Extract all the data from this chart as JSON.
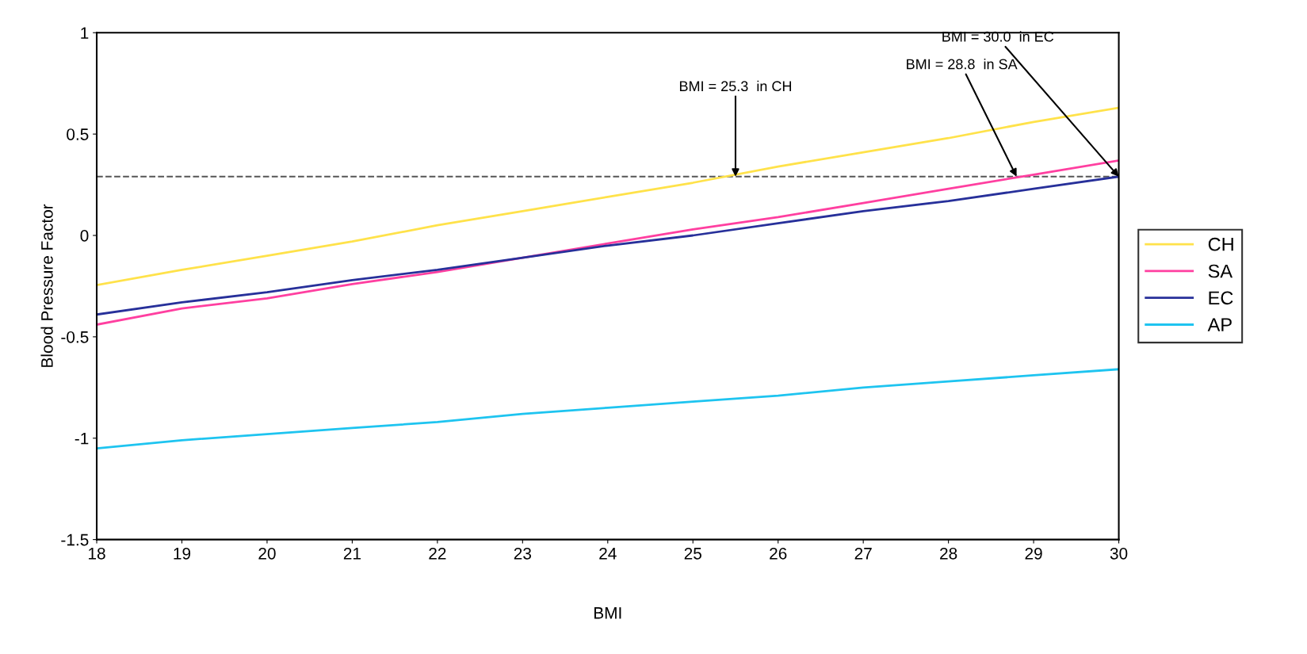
{
  "chart_data": {
    "type": "line",
    "xlabel": "BMI",
    "ylabel": "Blood Pressure Factor",
    "x": [
      18,
      19,
      20,
      21,
      22,
      23,
      24,
      25,
      26,
      27,
      28,
      29,
      30
    ],
    "series": [
      {
        "name": "CH",
        "color": "#ffe24a",
        "values": [
          -0.245,
          -0.17,
          -0.1,
          -0.03,
          0.05,
          0.12,
          0.19,
          0.26,
          0.34,
          0.41,
          0.48,
          0.56,
          0.63
        ]
      },
      {
        "name": "SA",
        "color": "#ff3fa0",
        "values": [
          -0.44,
          -0.36,
          -0.31,
          -0.24,
          -0.18,
          -0.11,
          -0.04,
          0.03,
          0.09,
          0.16,
          0.23,
          0.3,
          0.37
        ]
      },
      {
        "name": "EC",
        "color": "#27309a",
        "values": [
          -0.39,
          -0.33,
          -0.28,
          -0.22,
          -0.17,
          -0.11,
          -0.05,
          0.0,
          0.06,
          0.12,
          0.17,
          0.23,
          0.29
        ]
      },
      {
        "name": "AP",
        "color": "#1ec4f0",
        "values": [
          -1.05,
          -1.01,
          -0.98,
          -0.95,
          -0.92,
          -0.88,
          -0.85,
          -0.82,
          -0.79,
          -0.75,
          -0.72,
          -0.69,
          -0.66
        ]
      }
    ],
    "xlim": [
      18,
      30
    ],
    "xticks": [
      18,
      19,
      20,
      21,
      22,
      23,
      24,
      25,
      26,
      27,
      28,
      29,
      30
    ],
    "ylim": [
      -1.5,
      1
    ],
    "yticks": [
      -1.5,
      -1,
      -0.5,
      0,
      0.5,
      1
    ],
    "ref_lines": [
      {
        "axis": "y",
        "value": 0.29,
        "color": "#555555",
        "line_style": "dashed"
      }
    ],
    "annotations": [
      {
        "text": "BMI = 25.3  in CH",
        "x": 25.5,
        "y": 0.29
      },
      {
        "text": "BMI = 28.8  in SA",
        "x": 28.8,
        "y": 0.29
      },
      {
        "text": "BMI = 30.0  in EC",
        "x": 30,
        "y": 0.29
      }
    ],
    "grid": false,
    "legend": "right",
    "marker": "none",
    "line_style": "solid"
  }
}
